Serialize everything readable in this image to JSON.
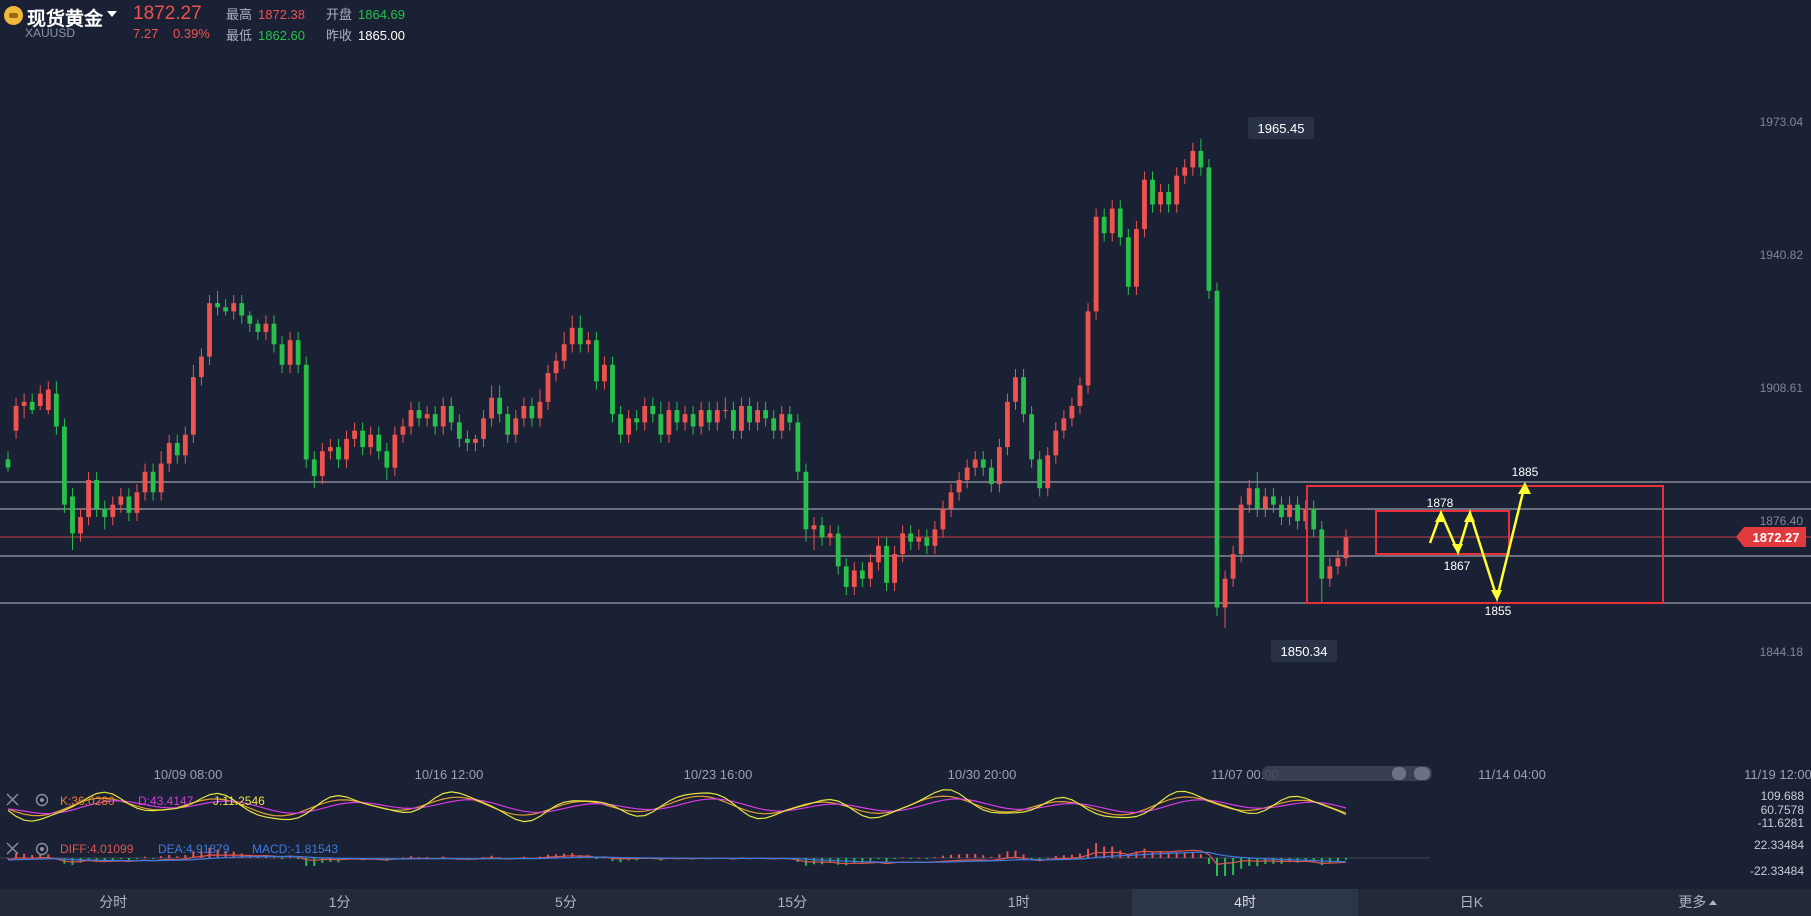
{
  "header": {
    "title": "现货黄金",
    "symbol": "XAUUSD",
    "price": "1872.27",
    "change": "7.27",
    "change_pct": "0.39%",
    "high_label": "最高",
    "high": "1872.38",
    "open_label": "开盘",
    "open": "1864.69",
    "low_label": "最低",
    "low": "1862.60",
    "prev_close_label": "昨收",
    "prev_close": "1865.00"
  },
  "price_axis": [
    "1973.04",
    "1940.82",
    "1908.61",
    "1876.40",
    "1844.18"
  ],
  "current_price_tag": "1872.27",
  "peak_label": "1965.45",
  "trough_label": "1850.34",
  "time_axis": [
    "10/09 08:00",
    "10/16 12:00",
    "10/23 16:00",
    "10/30 20:00",
    "11/07 00:00",
    "11/14 04:00",
    "11/19 12:00"
  ],
  "annotations": {
    "a1": "1885",
    "a2": "1878",
    "a3": "1867",
    "a4": "1855"
  },
  "indicators": {
    "kdj": {
      "k": "K:36.0280",
      "d": "D:43.4147",
      "j": "J:11.2546",
      "axis": [
        "109.688",
        "60.7578",
        "-11.6281"
      ]
    },
    "macd": {
      "diff": "DIFF:4.01099",
      "dea": "DEA:4.91879",
      "macd": "MACD:-1.81543",
      "axis": [
        "22.33484",
        "-22.33484"
      ]
    }
  },
  "tabs": [
    "分时",
    "1分",
    "5分",
    "15分",
    "1时",
    "4时",
    "日K",
    "更多"
  ],
  "active_tab": "4时",
  "colors": {
    "up": "#ef5350",
    "down": "#26c04a",
    "bg": "#1b2134",
    "yellow": "#ffff33"
  },
  "chart_data": {
    "type": "candlestick",
    "title": "现货黄金 XAUUSD 4时",
    "y_range": [
      1836,
      1980
    ],
    "candles": [
      [
        1891,
        1889,
        1893,
        1888
      ],
      [
        1898,
        1904,
        1906,
        1896
      ],
      [
        1904,
        1905,
        1907,
        1901
      ],
      [
        1905,
        1903,
        1907,
        1902
      ],
      [
        1904,
        1907,
        1909,
        1903
      ],
      [
        1903,
        1908,
        1910,
        1902
      ],
      [
        1907,
        1899,
        1910,
        1897
      ],
      [
        1899,
        1880,
        1901,
        1878
      ],
      [
        1882,
        1873,
        1884,
        1869
      ],
      [
        1873,
        1877,
        1879,
        1871
      ],
      [
        1877,
        1886,
        1888,
        1875
      ],
      [
        1886,
        1879,
        1888,
        1877
      ],
      [
        1879,
        1877,
        1881,
        1874
      ],
      [
        1877,
        1880,
        1882,
        1875
      ],
      [
        1880,
        1882,
        1884,
        1878
      ],
      [
        1882,
        1878,
        1884,
        1876
      ],
      [
        1878,
        1883,
        1885,
        1876
      ],
      [
        1883,
        1888,
        1890,
        1881
      ],
      [
        1888,
        1883,
        1890,
        1881
      ],
      [
        1883,
        1890,
        1893,
        1881
      ],
      [
        1890,
        1895,
        1897,
        1888
      ],
      [
        1895,
        1892,
        1897,
        1890
      ],
      [
        1892,
        1897,
        1899,
        1890
      ],
      [
        1897,
        1911,
        1914,
        1895
      ],
      [
        1911,
        1916,
        1918,
        1909
      ],
      [
        1916,
        1929,
        1931,
        1914
      ],
      [
        1929,
        1928,
        1932,
        1926
      ],
      [
        1928,
        1927,
        1930,
        1926
      ],
      [
        1927,
        1929,
        1931,
        1925
      ],
      [
        1929,
        1926,
        1931,
        1924
      ],
      [
        1926,
        1924,
        1927,
        1922
      ],
      [
        1924,
        1922,
        1925,
        1920
      ],
      [
        1922,
        1924,
        1926,
        1920
      ],
      [
        1924,
        1919,
        1926,
        1917
      ],
      [
        1919,
        1914,
        1921,
        1912
      ],
      [
        1914,
        1920,
        1922,
        1912
      ],
      [
        1920,
        1914,
        1922,
        1912
      ],
      [
        1914,
        1891,
        1916,
        1889
      ],
      [
        1891,
        1887,
        1893,
        1884
      ],
      [
        1887,
        1893,
        1895,
        1885
      ],
      [
        1893,
        1894,
        1896,
        1891
      ],
      [
        1894,
        1891,
        1896,
        1889
      ],
      [
        1891,
        1896,
        1898,
        1889
      ],
      [
        1896,
        1898,
        1900,
        1894
      ],
      [
        1898,
        1894,
        1900,
        1892
      ],
      [
        1894,
        1897,
        1899,
        1892
      ],
      [
        1897,
        1893,
        1899,
        1891
      ],
      [
        1893,
        1889,
        1895,
        1886
      ],
      [
        1889,
        1897,
        1899,
        1887
      ],
      [
        1897,
        1899,
        1901,
        1895
      ],
      [
        1899,
        1903,
        1905,
        1897
      ],
      [
        1903,
        1901,
        1905,
        1899
      ],
      [
        1901,
        1902,
        1904,
        1899
      ],
      [
        1902,
        1899,
        1904,
        1897
      ],
      [
        1899,
        1904,
        1906,
        1897
      ],
      [
        1904,
        1900,
        1906,
        1898
      ],
      [
        1900,
        1896,
        1902,
        1894
      ],
      [
        1896,
        1895,
        1898,
        1893
      ],
      [
        1895,
        1896,
        1897,
        1893
      ],
      [
        1896,
        1901,
        1903,
        1894
      ],
      [
        1901,
        1906,
        1909,
        1899
      ],
      [
        1906,
        1902,
        1909,
        1900
      ],
      [
        1902,
        1897,
        1904,
        1895
      ],
      [
        1897,
        1901,
        1903,
        1895
      ],
      [
        1901,
        1904,
        1906,
        1899
      ],
      [
        1904,
        1901,
        1906,
        1899
      ],
      [
        1901,
        1905,
        1908,
        1899
      ],
      [
        1905,
        1912,
        1914,
        1903
      ],
      [
        1912,
        1915,
        1917,
        1910
      ],
      [
        1915,
        1919,
        1922,
        1913
      ],
      [
        1919,
        1923,
        1926,
        1917
      ],
      [
        1923,
        1919,
        1926,
        1917
      ],
      [
        1919,
        1920,
        1922,
        1917
      ],
      [
        1920,
        1910,
        1922,
        1908
      ],
      [
        1910,
        1914,
        1916,
        1908
      ],
      [
        1914,
        1902,
        1916,
        1900
      ],
      [
        1902,
        1897,
        1904,
        1895
      ],
      [
        1897,
        1901,
        1903,
        1895
      ],
      [
        1901,
        1900,
        1903,
        1898
      ],
      [
        1900,
        1904,
        1906,
        1898
      ],
      [
        1904,
        1902,
        1906,
        1900
      ],
      [
        1902,
        1897,
        1905,
        1895
      ],
      [
        1897,
        1903,
        1905,
        1895
      ],
      [
        1903,
        1900,
        1905,
        1898
      ],
      [
        1900,
        1902,
        1904,
        1898
      ],
      [
        1902,
        1899,
        1904,
        1897
      ],
      [
        1899,
        1903,
        1905,
        1897
      ],
      [
        1903,
        1900,
        1905,
        1898
      ],
      [
        1900,
        1903,
        1905,
        1898
      ],
      [
        1903,
        1903,
        1906,
        1901
      ],
      [
        1903,
        1898,
        1905,
        1896
      ],
      [
        1898,
        1904,
        1906,
        1896
      ],
      [
        1904,
        1900,
        1906,
        1898
      ],
      [
        1900,
        1903,
        1905,
        1898
      ],
      [
        1903,
        1901,
        1905,
        1899
      ],
      [
        1901,
        1898,
        1903,
        1896
      ],
      [
        1898,
        1902,
        1904,
        1896
      ],
      [
        1902,
        1900,
        1904,
        1898
      ],
      [
        1900,
        1888,
        1902,
        1886
      ],
      [
        1888,
        1874,
        1890,
        1871
      ],
      [
        1874,
        1875,
        1877,
        1869
      ],
      [
        1875,
        1872,
        1877,
        1870
      ],
      [
        1872,
        1873,
        1875,
        1870
      ],
      [
        1873,
        1865,
        1875,
        1863
      ],
      [
        1865,
        1860,
        1867,
        1858
      ],
      [
        1860,
        1864,
        1866,
        1858
      ],
      [
        1864,
        1862,
        1866,
        1860
      ],
      [
        1862,
        1866,
        1868,
        1860
      ],
      [
        1866,
        1870,
        1872,
        1864
      ],
      [
        1870,
        1861,
        1872,
        1859
      ],
      [
        1861,
        1868,
        1870,
        1859
      ],
      [
        1868,
        1873,
        1875,
        1866
      ],
      [
        1873,
        1871,
        1875,
        1869
      ],
      [
        1871,
        1872,
        1874,
        1869
      ],
      [
        1872,
        1870,
        1874,
        1868
      ],
      [
        1870,
        1874,
        1876,
        1868
      ],
      [
        1874,
        1879,
        1881,
        1872
      ],
      [
        1879,
        1883,
        1885,
        1877
      ],
      [
        1883,
        1886,
        1888,
        1881
      ],
      [
        1886,
        1889,
        1891,
        1884
      ],
      [
        1889,
        1891,
        1893,
        1887
      ],
      [
        1891,
        1889,
        1893,
        1887
      ],
      [
        1889,
        1885,
        1891,
        1883
      ],
      [
        1885,
        1894,
        1896,
        1883
      ],
      [
        1894,
        1905,
        1907,
        1892
      ],
      [
        1905,
        1911,
        1913,
        1903
      ],
      [
        1911,
        1902,
        1913,
        1900
      ],
      [
        1902,
        1891,
        1904,
        1889
      ],
      [
        1891,
        1884,
        1893,
        1882
      ],
      [
        1884,
        1892,
        1894,
        1882
      ],
      [
        1892,
        1898,
        1900,
        1890
      ],
      [
        1898,
        1901,
        1903,
        1896
      ],
      [
        1901,
        1904,
        1906,
        1899
      ],
      [
        1904,
        1909,
        1911,
        1902
      ],
      [
        1909,
        1927,
        1929,
        1907
      ],
      [
        1927,
        1950,
        1952,
        1925
      ],
      [
        1950,
        1946,
        1952,
        1944
      ],
      [
        1946,
        1952,
        1954,
        1944
      ],
      [
        1952,
        1945,
        1954,
        1943
      ],
      [
        1945,
        1933,
        1947,
        1931
      ],
      [
        1933,
        1947,
        1949,
        1931
      ],
      [
        1947,
        1959,
        1961,
        1945
      ],
      [
        1959,
        1953,
        1961,
        1951
      ],
      [
        1953,
        1956,
        1958,
        1951
      ],
      [
        1956,
        1953,
        1958,
        1951
      ],
      [
        1953,
        1960,
        1962,
        1951
      ],
      [
        1960,
        1962,
        1964,
        1958
      ],
      [
        1962,
        1966,
        1968,
        1960
      ],
      [
        1966,
        1962,
        1969,
        1960
      ],
      [
        1962,
        1932,
        1964,
        1930
      ],
      [
        1932,
        1855,
        1934,
        1853
      ],
      [
        1855,
        1862,
        1864,
        1850
      ],
      [
        1862,
        1868,
        1870,
        1860
      ],
      [
        1868,
        1880,
        1882,
        1866
      ],
      [
        1880,
        1884,
        1886,
        1878
      ],
      [
        1884,
        1879,
        1888,
        1877
      ],
      [
        1879,
        1882,
        1884,
        1877
      ],
      [
        1882,
        1880,
        1884,
        1878
      ],
      [
        1880,
        1877,
        1882,
        1875
      ],
      [
        1877,
        1880,
        1882,
        1875
      ],
      [
        1880,
        1876,
        1882,
        1874
      ],
      [
        1876,
        1879,
        1881,
        1874
      ],
      [
        1879,
        1874,
        1881,
        1872
      ],
      [
        1874,
        1862,
        1876,
        1856
      ],
      [
        1862,
        1865,
        1867,
        1860
      ],
      [
        1865,
        1867,
        1869,
        1863
      ],
      [
        1867,
        1872,
        1874,
        1865
      ]
    ]
  }
}
